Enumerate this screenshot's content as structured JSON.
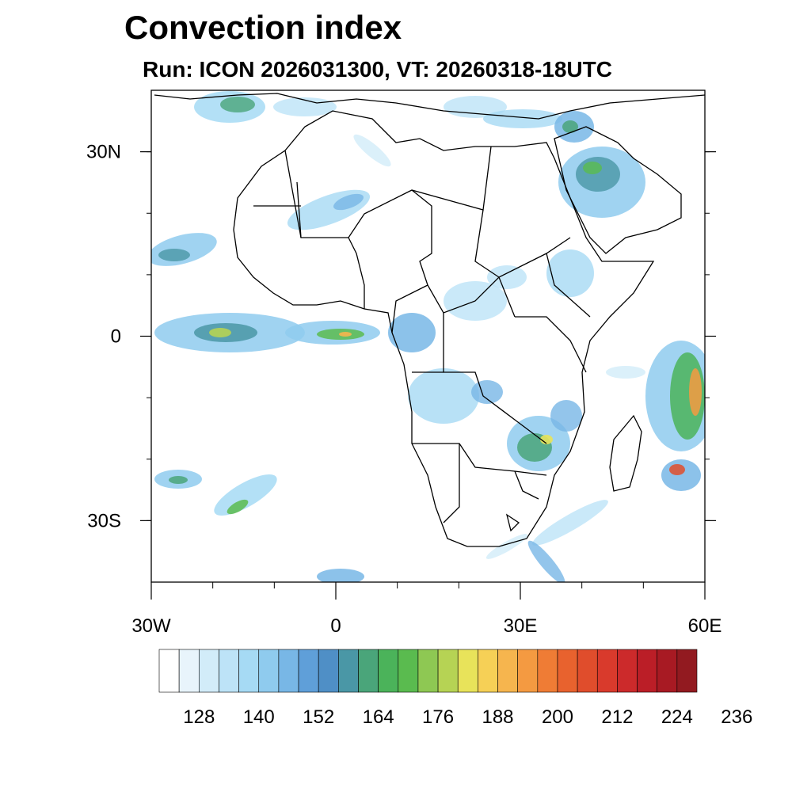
{
  "title": "Convection index",
  "subtitle": "Run: ICON 2026031300,  VT: 20260318-18UTC",
  "map": {
    "lon_range": [
      -30,
      60
    ],
    "lat_range": [
      -40,
      40
    ],
    "lat_ticks": [
      {
        "label": "30N",
        "value": 30
      },
      {
        "label": "0",
        "value": 0
      },
      {
        "label": "30S",
        "value": -30
      }
    ],
    "lon_ticks": [
      {
        "label": "30W",
        "value": -30
      },
      {
        "label": "0",
        "value": 0
      },
      {
        "label": "30E",
        "value": 30
      },
      {
        "label": "60E",
        "value": 60
      }
    ]
  },
  "colorbar": {
    "colors": [
      "#ffffff",
      "#e8f4fb",
      "#d2ecf9",
      "#bde3f7",
      "#a6daf4",
      "#8fcbee",
      "#78b7e6",
      "#5f9fd9",
      "#4f8fc6",
      "#4a97a6",
      "#4aa57a",
      "#4bb35a",
      "#5abb4f",
      "#8ec853",
      "#b6d354",
      "#e8e35a",
      "#f6d056",
      "#f6b54e",
      "#f49a41",
      "#ef7c35",
      "#e8622e",
      "#e04d2c",
      "#d93a2c",
      "#cc2a2b",
      "#bb1e27",
      "#a81a23",
      "#921a20"
    ],
    "labels": [
      "128",
      "140",
      "152",
      "164",
      "176",
      "188",
      "200",
      "212",
      "224",
      "236"
    ]
  }
}
